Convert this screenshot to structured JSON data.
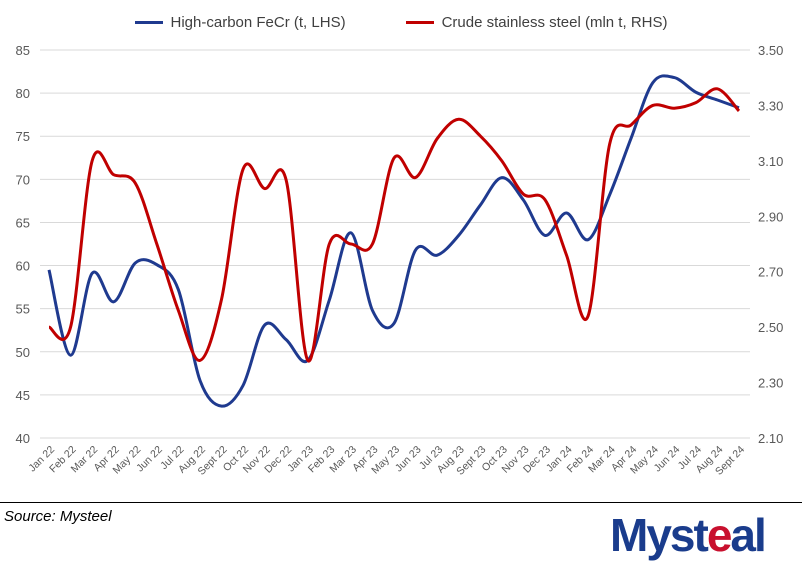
{
  "chart_data": {
    "type": "line",
    "title": "",
    "categories": [
      "Jan 22",
      "Feb 22",
      "Mar 22",
      "Apr 22",
      "May 22",
      "Jun 22",
      "Jul 22",
      "Aug 22",
      "Sept 22",
      "Oct 22",
      "Nov 22",
      "Dec 22",
      "Jan 23",
      "Feb 23",
      "Mar 23",
      "Apr 23",
      "May 23",
      "Jun 23",
      "Jul 23",
      "Aug 23",
      "Sept 23",
      "Oct 23",
      "Nov 23",
      "Dec 23",
      "Jan 24",
      "Feb 24",
      "Mar 24",
      "Apr 24",
      "May 24",
      "Jun 24",
      "Jul 24",
      "Aug 24",
      "Sept 24"
    ],
    "series": [
      {
        "name": "High-carbon FeCr (t, LHS)",
        "axis": "left",
        "color": "#1f3a8f",
        "values": [
          59.5,
          49.6,
          59.1,
          55.8,
          60.3,
          60.1,
          57.2,
          46.7,
          43.7,
          46.1,
          53.1,
          51.4,
          49.0,
          56.0,
          63.8,
          54.8,
          53.3,
          61.8,
          61.2,
          63.5,
          67.0,
          70.2,
          67.6,
          63.5,
          66.1,
          63.0,
          68.2,
          74.8,
          81.2,
          81.8,
          80.1,
          79.2,
          78.3
        ]
      },
      {
        "name": "Crude stainless steel (mln t, RHS)",
        "axis": "right",
        "color": "#c00000",
        "values": [
          2.5,
          2.5,
          3.1,
          3.05,
          3.02,
          2.8,
          2.56,
          2.38,
          2.6,
          3.07,
          3.0,
          3.03,
          2.38,
          2.8,
          2.8,
          2.8,
          3.11,
          3.04,
          3.18,
          3.25,
          3.19,
          3.1,
          2.98,
          2.96,
          2.76,
          2.54,
          3.16,
          3.23,
          3.3,
          3.29,
          3.31,
          3.36,
          3.28
        ]
      }
    ],
    "y_left": {
      "ylim": [
        40,
        85
      ],
      "ticks": [
        "40",
        "45",
        "50",
        "55",
        "60",
        "65",
        "70",
        "75",
        "80",
        "85"
      ]
    },
    "y_right": {
      "ylim": [
        2.1,
        3.5
      ],
      "ticks": [
        "2.10",
        "2.30",
        "2.50",
        "2.70",
        "2.90",
        "3.10",
        "3.30",
        "3.50"
      ]
    },
    "grid": true,
    "legend": "top-center"
  },
  "source": "Source:  Mysteel",
  "logo": {
    "text_a": "Myst",
    "text_b": "e",
    "text_c": "al"
  }
}
